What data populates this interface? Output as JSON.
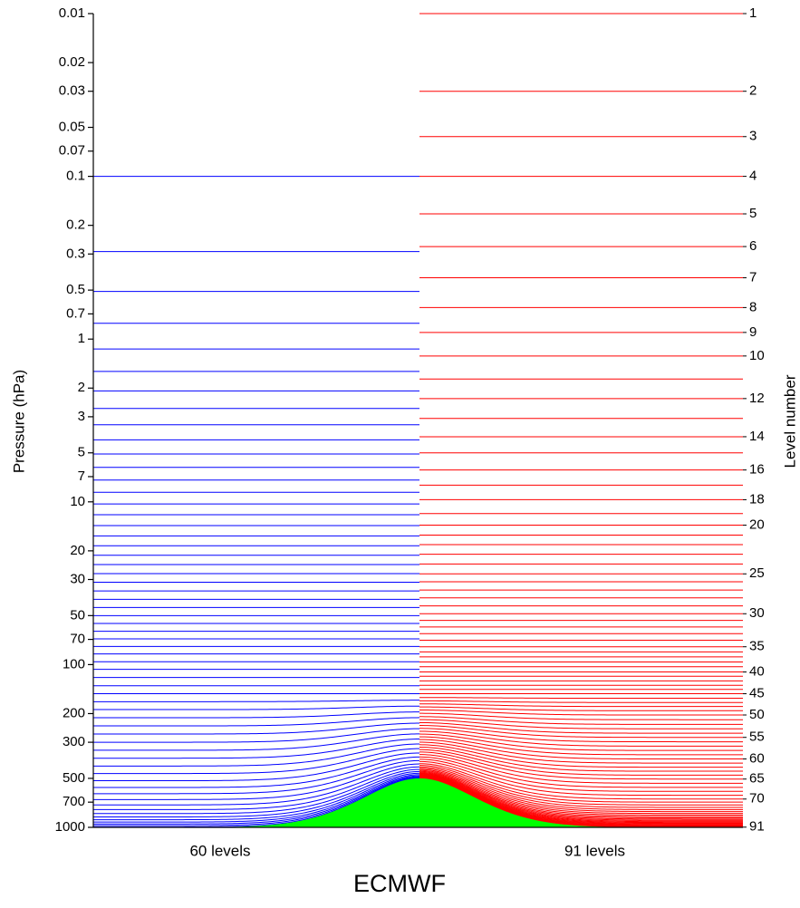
{
  "chart_data": {
    "type": "levels",
    "caption": "ECMWF",
    "y_label": "Pressure (hPa)",
    "y2_label": "Level number",
    "log_y": true,
    "ylim": [
      1000,
      0.01
    ],
    "yticks": [
      0.01,
      0.02,
      0.03,
      0.05,
      0.07,
      0.1,
      0.2,
      0.3,
      0.5,
      0.7,
      1,
      2,
      3,
      5,
      7,
      10,
      20,
      30,
      50,
      70,
      100,
      200,
      300,
      500,
      700,
      1000
    ],
    "y2ticks": [
      1,
      2,
      3,
      4,
      5,
      6,
      7,
      8,
      9,
      10,
      12,
      14,
      16,
      18,
      20,
      25,
      30,
      35,
      40,
      45,
      50,
      55,
      60,
      65,
      70,
      91
    ],
    "terrain": {
      "color": "#00ff00",
      "peak": 500
    },
    "series": [
      {
        "name": "60 levels",
        "color": "#0000ff",
        "values": [
          0.1,
          0.29,
          0.51,
          0.8,
          1.15,
          1.58,
          2.08,
          2.67,
          3.36,
          4.16,
          5.08,
          6.14,
          7.35,
          8.73,
          10.3,
          12.0,
          14.0,
          16.2,
          18.6,
          21.3,
          24.3,
          27.6,
          31.2,
          35.3,
          39.7,
          44.6,
          50.0,
          55.9,
          62.4,
          69.5,
          77.3,
          86.0,
          96,
          107,
          120,
          135,
          151,
          169,
          189,
          212,
          238,
          267,
          300,
          336,
          376,
          420,
          467,
          517,
          569,
          621,
          675,
          728,
          778,
          823,
          863,
          898,
          928,
          953,
          975,
          995
        ]
      },
      {
        "name": "91 levels",
        "color": "#ff0000",
        "values": [
          0.01,
          0.03,
          0.057,
          0.1,
          0.17,
          0.27,
          0.42,
          0.64,
          0.91,
          1.27,
          1.76,
          2.32,
          3.07,
          3.98,
          5.0,
          6.37,
          7.9,
          9.7,
          11.8,
          13.9,
          16.0,
          18.3,
          21.0,
          24.1,
          27.7,
          31.0,
          34.8,
          38.9,
          43.6,
          48.7,
          53.5,
          58.7,
          64.5,
          70.8,
          77.7,
          83.5,
          89.6,
          96.3,
          103,
          111,
          118,
          126,
          134,
          142,
          151,
          161,
          171,
          181,
          192,
          204,
          218,
          233,
          248,
          264,
          280,
          298,
          317,
          337,
          358,
          380,
          403,
          427,
          452,
          478,
          505,
          536,
          568,
          601,
          635,
          670,
          700,
          728,
          754,
          778,
          800,
          821,
          840,
          858,
          874,
          889,
          903,
          916,
          928,
          939,
          949,
          959,
          968,
          977,
          986,
          992,
          997
        ]
      }
    ]
  }
}
